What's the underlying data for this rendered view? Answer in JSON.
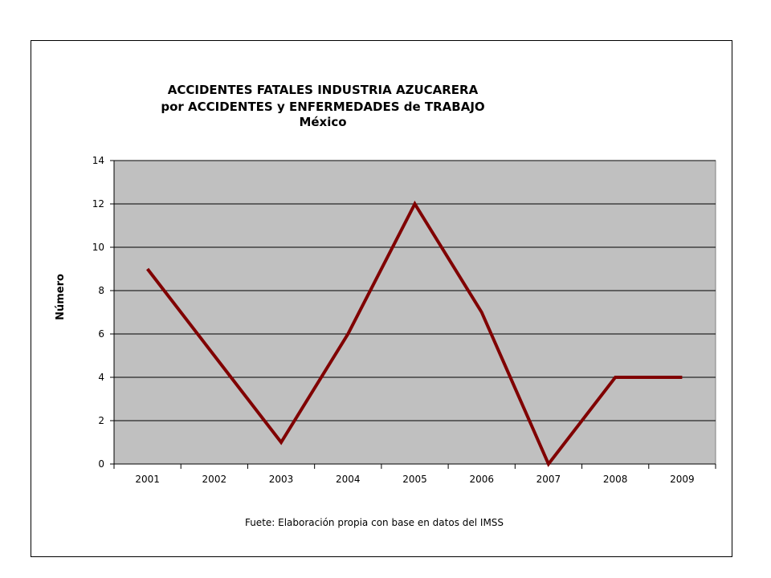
{
  "chart_data": {
    "type": "line",
    "title_lines": [
      "ACCIDENTES FATALES INDUSTRIA AZUCARERA",
      "por ACCIDENTES y ENFERMEDADES de TRABAJO",
      "México"
    ],
    "ylabel": "Número",
    "xlabel": "",
    "categories": [
      "2001",
      "2002",
      "2003",
      "2004",
      "2005",
      "2006",
      "2007",
      "2008",
      "2009"
    ],
    "series": [
      {
        "values": [
          9,
          5,
          1,
          6,
          12,
          7,
          0,
          4,
          4
        ],
        "color": "#800000"
      }
    ],
    "ylim": [
      0,
      14
    ],
    "yticks": [
      "0",
      "2",
      "4",
      "6",
      "8",
      "10",
      "12",
      "14"
    ],
    "grid": true,
    "plot_background": "#c0c0c0",
    "source_note": "Fuete: Elaboración propia con base en datos del IMSS"
  }
}
